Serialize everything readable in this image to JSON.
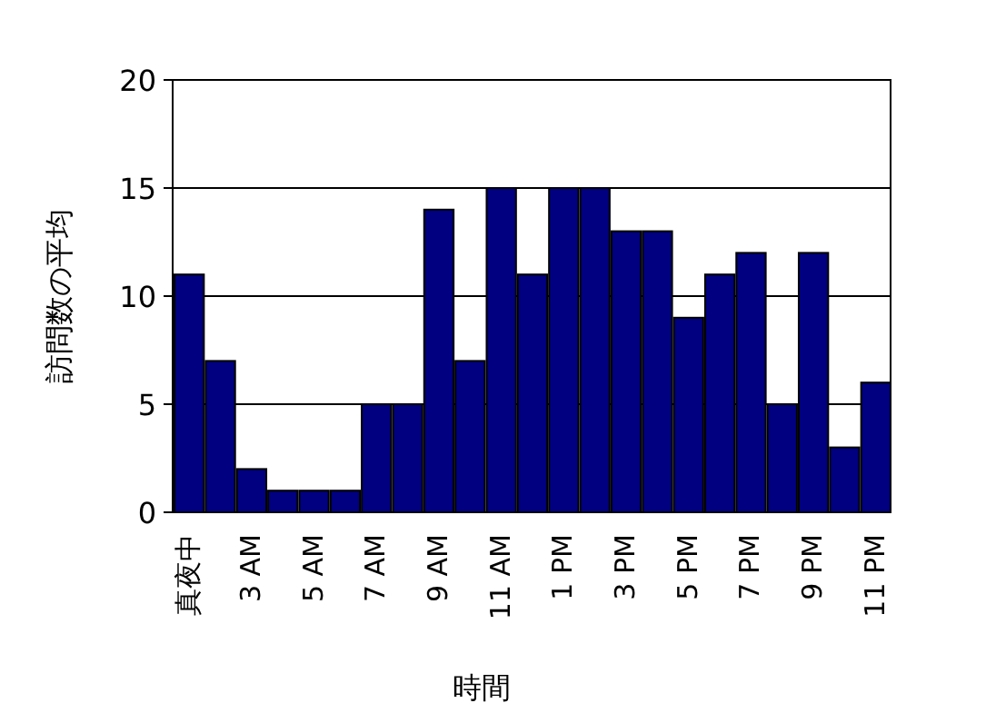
{
  "chart_data": {
    "type": "bar",
    "xlabel": "時間",
    "ylabel": "訪問数の平均",
    "categories": [
      "真夜中",
      null,
      "3 AM",
      null,
      "5 AM",
      null,
      "7 AM",
      null,
      "9 AM",
      null,
      "11 AM",
      null,
      "1 PM",
      null,
      "3 PM",
      null,
      "5 PM",
      null,
      "7 PM",
      null,
      "9 PM",
      null,
      "11 PM"
    ],
    "values": [
      11,
      7,
      2,
      1,
      1,
      1,
      5,
      5,
      14,
      7,
      15,
      11,
      15,
      15,
      13,
      13,
      9,
      11,
      12,
      5,
      12,
      3,
      6
    ],
    "color": "#000080",
    "ylim": [
      0,
      20
    ],
    "yticks": [
      0,
      5,
      10,
      15,
      20
    ],
    "grid": "y"
  }
}
